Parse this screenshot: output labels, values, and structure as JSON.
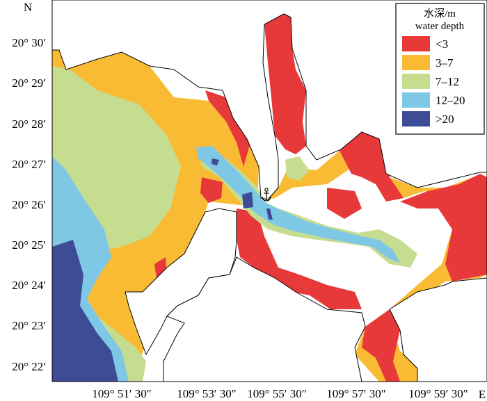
{
  "compass": {
    "north": "N",
    "east": "E"
  },
  "lat_ticks": [
    "20° 30′",
    "20° 29′",
    "20° 28′",
    "20° 27′",
    "20° 26′",
    "20° 25′",
    "20° 24′",
    "20° 23′",
    "20° 22′"
  ],
  "lon_ticks": [
    "109° 51′ 30″",
    "109° 53′ 30″",
    "109° 55′ 30″",
    "109° 57′ 30″",
    "109° 59′ 30″"
  ],
  "legend": {
    "title_cn": "水深/m",
    "title_en": "water depth",
    "items": [
      {
        "label": "<3",
        "color": "#e8393a"
      },
      {
        "label": "3–7",
        "color": "#f8bb33"
      },
      {
        "label": "7–12",
        "color": "#c6dd8f"
      },
      {
        "label": "12–20",
        "color": "#7ec8e6"
      },
      {
        "label": ">20",
        "color": "#3e4c98"
      }
    ]
  },
  "port_marker_icon": "anchor-icon"
}
